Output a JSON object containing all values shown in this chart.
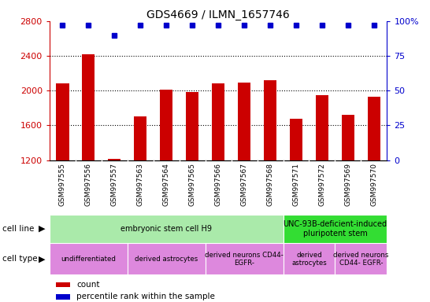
{
  "title": "GDS4669 / ILMN_1657746",
  "samples": [
    "GSM997555",
    "GSM997556",
    "GSM997557",
    "GSM997563",
    "GSM997564",
    "GSM997565",
    "GSM997566",
    "GSM997567",
    "GSM997568",
    "GSM997571",
    "GSM997572",
    "GSM997569",
    "GSM997570"
  ],
  "counts": [
    2080,
    2420,
    1210,
    1700,
    2010,
    1980,
    2080,
    2090,
    2120,
    1680,
    1950,
    1720,
    1930
  ],
  "percentiles": [
    97,
    97,
    90,
    97,
    97,
    97,
    97,
    97,
    97,
    97,
    97,
    97,
    97
  ],
  "ylim_left": [
    1200,
    2800
  ],
  "ylim_right": [
    0,
    100
  ],
  "yticks_left": [
    1200,
    1600,
    2000,
    2400,
    2800
  ],
  "yticks_right": [
    0,
    25,
    50,
    75,
    100
  ],
  "grid_lines": [
    1600,
    2000,
    2400
  ],
  "bar_color": "#cc0000",
  "dot_color": "#0000cc",
  "bar_width": 0.5,
  "cell_line_groups": [
    {
      "label": "embryonic stem cell H9",
      "start": 0,
      "end": 9,
      "color": "#aaeaaa"
    },
    {
      "label": "UNC-93B-deficient-induced\npluripotent stem",
      "start": 9,
      "end": 13,
      "color": "#33dd33"
    }
  ],
  "cell_type_groups": [
    {
      "label": "undifferentiated",
      "start": 0,
      "end": 3,
      "color": "#dd88dd"
    },
    {
      "label": "derived astrocytes",
      "start": 3,
      "end": 6,
      "color": "#dd88dd"
    },
    {
      "label": "derived neurons CD44-\nEGFR-",
      "start": 6,
      "end": 9,
      "color": "#dd88dd"
    },
    {
      "label": "derived\nastrocytes",
      "start": 9,
      "end": 11,
      "color": "#dd88dd"
    },
    {
      "label": "derived neurons\nCD44- EGFR-",
      "start": 11,
      "end": 13,
      "color": "#dd88dd"
    }
  ],
  "legend_count_color": "#cc0000",
  "legend_percentile_color": "#0000cc",
  "sample_bg_color": "#cccccc",
  "left_label_color": "#cc0000",
  "right_label_color": "#0000cc"
}
